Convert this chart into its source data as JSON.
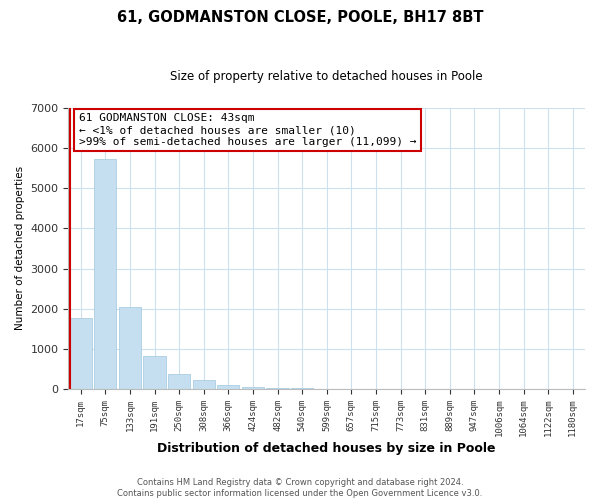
{
  "title": "61, GODMANSTON CLOSE, POOLE, BH17 8BT",
  "subtitle": "Size of property relative to detached houses in Poole",
  "xlabel": "Distribution of detached houses by size in Poole",
  "ylabel": "Number of detached properties",
  "bar_labels": [
    "17sqm",
    "75sqm",
    "133sqm",
    "191sqm",
    "250sqm",
    "308sqm",
    "366sqm",
    "424sqm",
    "482sqm",
    "540sqm",
    "599sqm",
    "657sqm",
    "715sqm",
    "773sqm",
    "831sqm",
    "889sqm",
    "947sqm",
    "1006sqm",
    "1064sqm",
    "1122sqm",
    "1180sqm"
  ],
  "bar_values": [
    1780,
    5730,
    2050,
    820,
    370,
    230,
    100,
    60,
    30,
    15,
    5,
    0,
    0,
    0,
    0,
    0,
    0,
    0,
    0,
    0,
    0
  ],
  "bar_color": "#c5dff0",
  "bar_edge_color": "#a0c8e0",
  "highlight_color": "#cc0000",
  "annotation_title": "61 GODMANSTON CLOSE: 43sqm",
  "annotation_line1": "← <1% of detached houses are smaller (10)",
  "annotation_line2": ">99% of semi-detached houses are larger (11,099) →",
  "ylim": [
    0,
    7000
  ],
  "yticks": [
    0,
    1000,
    2000,
    3000,
    4000,
    5000,
    6000,
    7000
  ],
  "footer_line1": "Contains HM Land Registry data © Crown copyright and database right 2024.",
  "footer_line2": "Contains public sector information licensed under the Open Government Licence v3.0.",
  "bg_color": "#ffffff",
  "grid_color": "#cce0ee"
}
